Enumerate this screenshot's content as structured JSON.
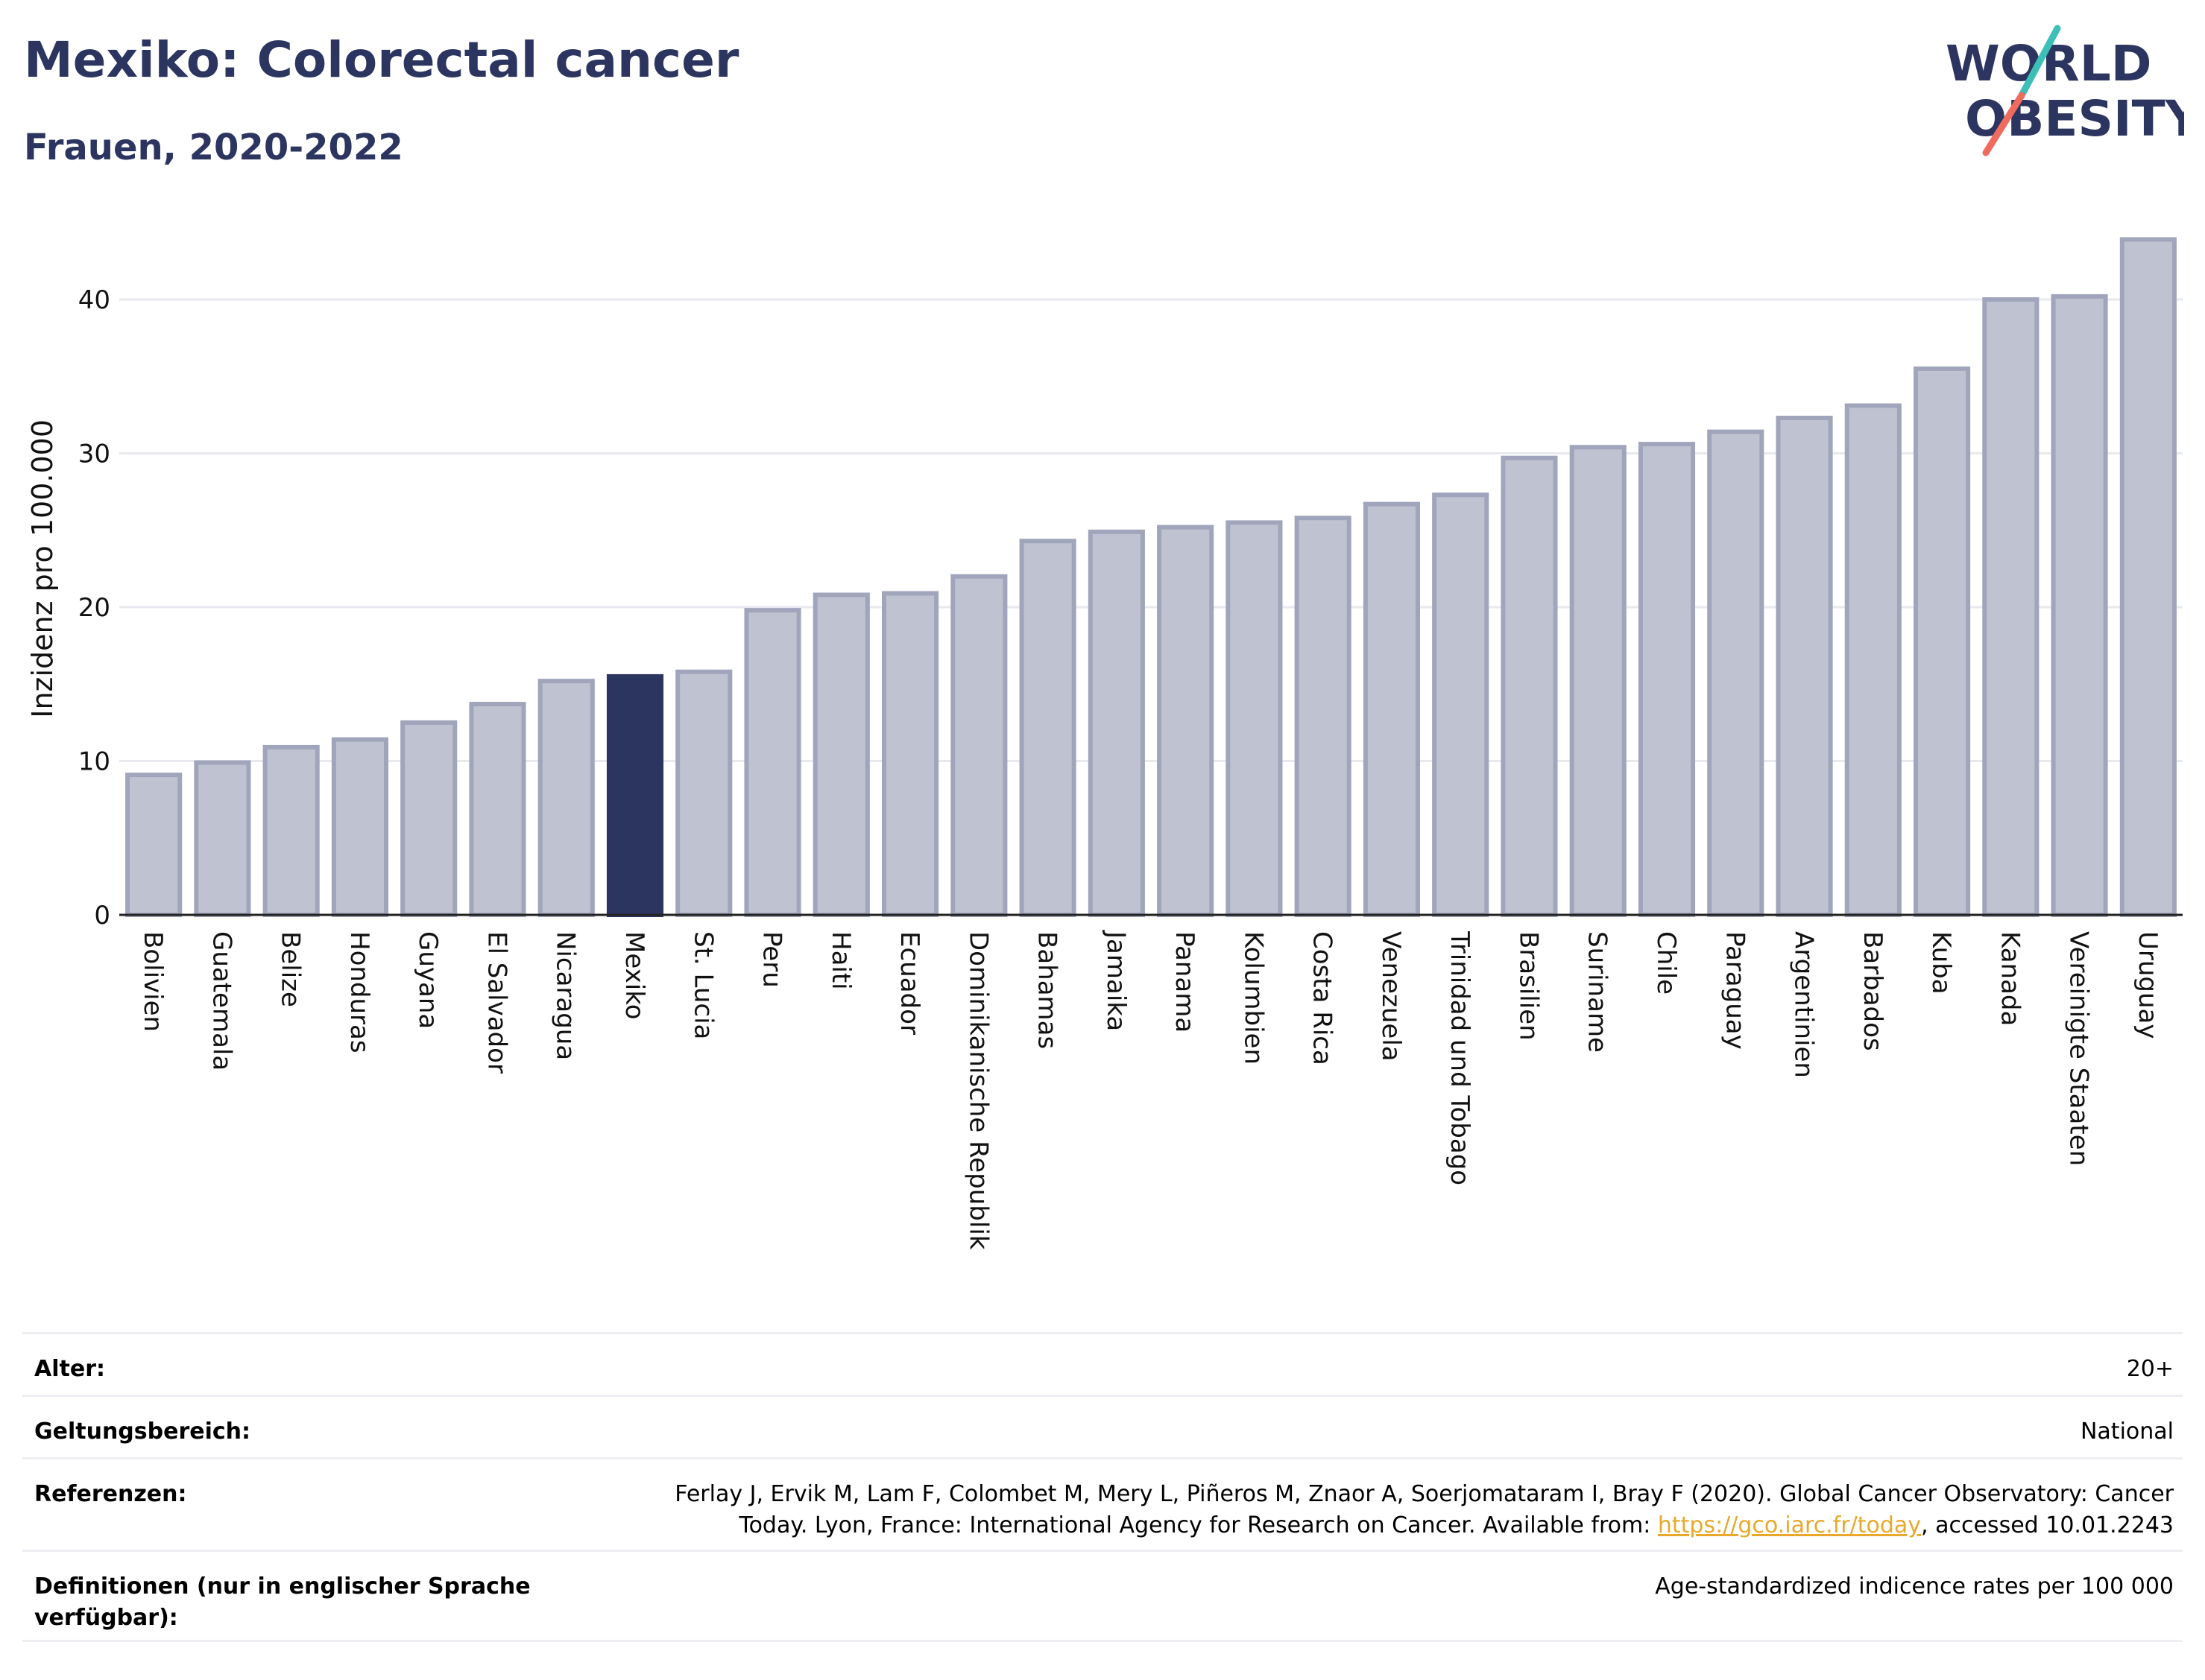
{
  "header": {
    "title": "Mexiko: Colorectal cancer",
    "subtitle": "Frauen, 2020-2022"
  },
  "logo": {
    "line1": "WORLD",
    "line2": "OBESITY"
  },
  "colors": {
    "highlight_bar": "#2c3560",
    "other_bar": "#bfc3d1",
    "bar_border": "#a0a5bb",
    "title": "#2c3560",
    "logo_slash_teal": "#3bbfb6",
    "logo_slash_coral": "#ee6b5e"
  },
  "chart_data": {
    "type": "bar",
    "title": "Mexiko: Colorectal cancer",
    "subtitle": "Frauen, 2020-2022",
    "xlabel": "",
    "ylabel": "Inzidenz pro 100.000",
    "ylim": [
      0,
      45
    ],
    "yticks": [
      0,
      10,
      20,
      30,
      40
    ],
    "grid": true,
    "highlight": "Mexiko",
    "categories": [
      "Bolivien",
      "Guatemala",
      "Belize",
      "Honduras",
      "Guyana",
      "El Salvador",
      "Nicaragua",
      "Mexiko",
      "St. Lucia",
      "Peru",
      "Haiti",
      "Ecuador",
      "Dominikanische Republik",
      "Bahamas",
      "Jamaika",
      "Panama",
      "Kolumbien",
      "Costa Rica",
      "Venezuela",
      "Trinidad und Tobago",
      "Brasilien",
      "Suriname",
      "Chile",
      "Paraguay",
      "Argentinien",
      "Barbados",
      "Kuba",
      "Kanada",
      "Vereinigte Staaten",
      "Uruguay"
    ],
    "values": [
      9.1,
      9.9,
      10.9,
      11.4,
      12.5,
      13.7,
      15.2,
      15.5,
      15.8,
      19.8,
      20.8,
      20.9,
      22.0,
      24.3,
      24.9,
      25.2,
      25.5,
      25.8,
      26.7,
      27.3,
      29.7,
      30.4,
      30.6,
      31.4,
      32.3,
      33.1,
      35.5,
      40.0,
      40.2,
      43.9
    ]
  },
  "info": {
    "rows": [
      {
        "label": "Alter:",
        "value": "20+"
      },
      {
        "label": "Geltungsbereich:",
        "value": "National"
      },
      {
        "label": "Referenzen:",
        "value_line1": "Ferlay J, Ervik M, Lam F, Colombet M, Mery L, Piñeros M, Znaor A, Soerjomataram I, Bray F (2020). Global Cancer Observatory: Cancer",
        "value_line2_pre": "Today. Lyon, France: International Agency for Research on Cancer. Available from: ",
        "link": "https://gco.iarc.fr/today",
        "value_line2_post": ", accessed 10.01.2243"
      },
      {
        "label": "Definitionen (nur in englischer Sprache verfügbar):",
        "value": "Age-standardized indicence rates per 100 000"
      }
    ]
  }
}
